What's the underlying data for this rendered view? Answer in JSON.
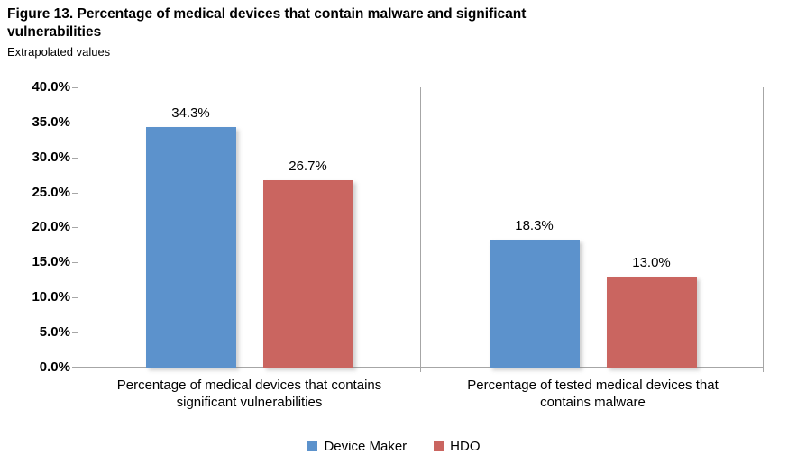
{
  "figure": {
    "title_line1": "Figure 13. Percentage of medical devices that contain malware and significant",
    "title_line2": "vulnerabilities",
    "subtitle": "Extrapolated values"
  },
  "chart_data": {
    "type": "bar",
    "title": "Figure 13. Percentage of medical devices that contain malware and significant vulnerabilities",
    "subtitle": "Extrapolated values",
    "categories": [
      "Percentage of medical devices that contains significant vulnerabilities",
      "Percentage of tested medical devices that contains malware"
    ],
    "category_label_lines": [
      [
        "Percentage of medical devices that contains",
        "significant vulnerabilities"
      ],
      [
        "Percentage of tested medical devices that",
        "contains malware"
      ]
    ],
    "series": [
      {
        "name": "Device Maker",
        "color": "#5C92CC",
        "values": [
          34.3,
          18.3
        ],
        "labels": [
          "34.3%",
          "18.3%"
        ]
      },
      {
        "name": "HDO",
        "color": "#CA6560",
        "values": [
          26.7,
          13.0
        ],
        "labels": [
          "26.7%",
          "13.0%"
        ]
      }
    ],
    "ylim": [
      0,
      40
    ],
    "ytick_step": 5,
    "ytick_labels": [
      "0.0%",
      "5.0%",
      "10.0%",
      "15.0%",
      "20.0%",
      "25.0%",
      "30.0%",
      "35.0%",
      "40.0%"
    ],
    "grid": false,
    "legend_position": "bottom",
    "axis_color": "#A6A6A6"
  }
}
